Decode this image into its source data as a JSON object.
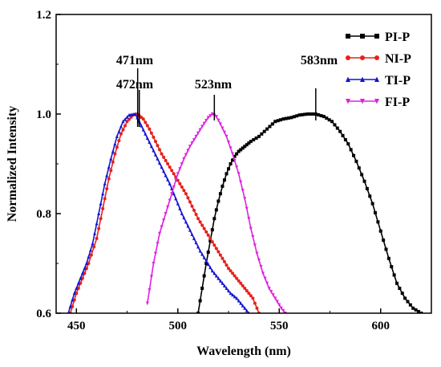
{
  "chart_data": {
    "type": "line",
    "xlabel": "Wavelength (nm)",
    "ylabel": "Normalized Intensity",
    "xlim": [
      440,
      625
    ],
    "ylim": [
      0.6,
      1.2
    ],
    "xticks": [
      450,
      500,
      550,
      600
    ],
    "yticks": [
      0.6,
      0.8,
      1.0,
      1.2
    ],
    "grid": false,
    "legend_position": "top-right",
    "x_tick_labels": [
      "450",
      "500",
      "550",
      "600"
    ],
    "y_tick_labels": [
      "0.6",
      "0.8",
      "1.0",
      "1.2"
    ],
    "annotations": [
      {
        "text": "471nm",
        "x": 480.2
      },
      {
        "text": "472nm",
        "x": 481.0
      },
      {
        "text": "523nm",
        "x": 518.0
      },
      {
        "text": "583nm",
        "x": 568.0
      }
    ],
    "series": [
      {
        "name": "PI-P",
        "color": "#000000",
        "marker": "square",
        "x": [
          510,
          512,
          514,
          516,
          518,
          520,
          522,
          524,
          526,
          528,
          530,
          533,
          536,
          540,
          544,
          548,
          552,
          556,
          560,
          564,
          568,
          572,
          576,
          580,
          584,
          588,
          592,
          596,
          600,
          604,
          608,
          612,
          616,
          620
        ],
        "y": [
          0.6,
          0.65,
          0.7,
          0.745,
          0.79,
          0.825,
          0.855,
          0.88,
          0.9,
          0.915,
          0.925,
          0.935,
          0.945,
          0.955,
          0.97,
          0.985,
          0.99,
          0.993,
          0.998,
          1.0,
          1.0,
          0.995,
          0.985,
          0.965,
          0.94,
          0.905,
          0.865,
          0.82,
          0.765,
          0.71,
          0.66,
          0.63,
          0.61,
          0.6
        ]
      },
      {
        "name": "NI-P",
        "color": "#e8201c",
        "marker": "circle",
        "x": [
          447,
          450,
          453,
          456,
          460,
          463,
          466,
          469,
          472,
          475,
          478,
          480,
          483,
          486,
          489,
          492,
          495,
          498,
          501,
          504,
          507,
          510,
          513,
          516,
          519,
          522,
          525,
          528,
          531,
          534,
          537,
          540
        ],
        "y": [
          0.6,
          0.64,
          0.67,
          0.7,
          0.75,
          0.81,
          0.87,
          0.92,
          0.96,
          0.985,
          0.998,
          1.0,
          0.99,
          0.97,
          0.945,
          0.92,
          0.9,
          0.88,
          0.86,
          0.84,
          0.815,
          0.79,
          0.77,
          0.75,
          0.73,
          0.71,
          0.69,
          0.675,
          0.66,
          0.645,
          0.63,
          0.6
        ]
      },
      {
        "name": "TI-P",
        "color": "#1414d2",
        "marker": "triangle-up",
        "x": [
          446,
          449,
          452,
          455,
          458,
          461,
          464,
          467,
          470,
          473,
          476,
          479,
          481,
          484,
          487,
          490,
          493,
          496,
          499,
          502,
          505,
          508,
          511,
          514,
          517,
          520,
          523,
          526,
          529,
          532,
          535
        ],
        "y": [
          0.6,
          0.64,
          0.67,
          0.7,
          0.74,
          0.8,
          0.86,
          0.91,
          0.955,
          0.985,
          0.998,
          1.0,
          0.985,
          0.96,
          0.935,
          0.91,
          0.885,
          0.86,
          0.83,
          0.8,
          0.775,
          0.75,
          0.725,
          0.705,
          0.685,
          0.67,
          0.655,
          0.64,
          0.63,
          0.615,
          0.6
        ]
      },
      {
        "name": "FI-P",
        "color": "#e020e0",
        "marker": "triangle-down",
        "x": [
          485,
          488,
          491,
          494,
          497,
          500,
          503,
          506,
          509,
          512,
          515,
          517,
          519,
          521,
          524,
          527,
          530,
          533,
          536,
          539,
          542,
          545,
          548,
          551,
          553
        ],
        "y": [
          0.62,
          0.7,
          0.76,
          0.8,
          0.84,
          0.88,
          0.91,
          0.935,
          0.955,
          0.975,
          0.993,
          1.0,
          0.995,
          0.98,
          0.955,
          0.92,
          0.88,
          0.83,
          0.77,
          0.72,
          0.68,
          0.65,
          0.63,
          0.61,
          0.6
        ]
      }
    ]
  }
}
